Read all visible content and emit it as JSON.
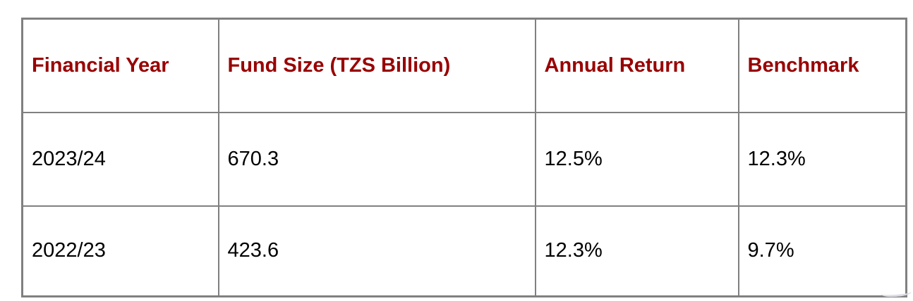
{
  "colors": {
    "header_text": "#990000",
    "body_text": "#000000",
    "border": "#808080",
    "background": "#ffffff"
  },
  "table": {
    "columns": [
      {
        "label": "Financial Year"
      },
      {
        "label": "Fund Size (TZS Billion)"
      },
      {
        "label": "Annual Return"
      },
      {
        "label": "Benchmark"
      }
    ],
    "rows": [
      {
        "cells": [
          "2023/24",
          "670.3",
          "12.5%",
          "12.3%"
        ]
      },
      {
        "cells": [
          "2022/23",
          "423.6",
          "12.3%",
          "9.7%"
        ]
      }
    ]
  },
  "chart_data": {
    "type": "table",
    "columns": [
      "Financial Year",
      "Fund Size (TZS Billion)",
      "Annual Return",
      "Benchmark"
    ],
    "rows": [
      [
        "2023/24",
        "670.3",
        "12.5%",
        "12.3%"
      ],
      [
        "2022/23",
        "423.6",
        "12.3%",
        "9.7%"
      ]
    ]
  }
}
